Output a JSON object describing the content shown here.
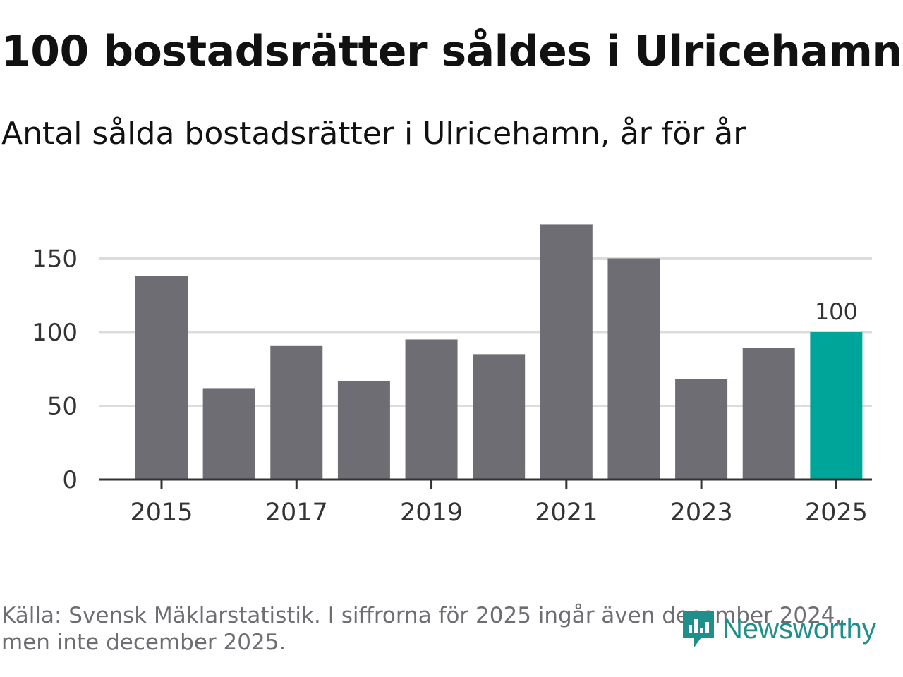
{
  "chart_data": {
    "type": "bar",
    "title": "100 bostadsrätter såldes i Ulricehamn",
    "subtitle": "Antal sålda bostadsrätter i Ulricehamn, år för år",
    "categories": [
      "2015",
      "2016",
      "2017",
      "2018",
      "2019",
      "2020",
      "2021",
      "2022",
      "2023",
      "2024",
      "2025"
    ],
    "values": [
      138,
      62,
      91,
      67,
      95,
      85,
      173,
      150,
      68,
      89,
      100
    ],
    "x_tick_labels": [
      "2015",
      "2017",
      "2019",
      "2021",
      "2023",
      "2025"
    ],
    "y_ticks": [
      0,
      50,
      100,
      150
    ],
    "ylim": [
      0,
      180
    ],
    "highlight": {
      "category": "2025",
      "label": "100"
    },
    "xlabel": "",
    "ylabel": "",
    "grid": true,
    "colors": {
      "bar": "#6e6d73",
      "highlight": "#00a59a",
      "grid": "#dcdcdc",
      "axis": "#333333"
    }
  },
  "source_text": "Källa: Svensk Mäklarstatistik. I siffrorna för 2025 ingår även december 2024, men inte december 2025.",
  "logo": {
    "text": "Newsworthy",
    "icon": "newsworthy-chat-icon",
    "color": "#1f8f8b"
  }
}
